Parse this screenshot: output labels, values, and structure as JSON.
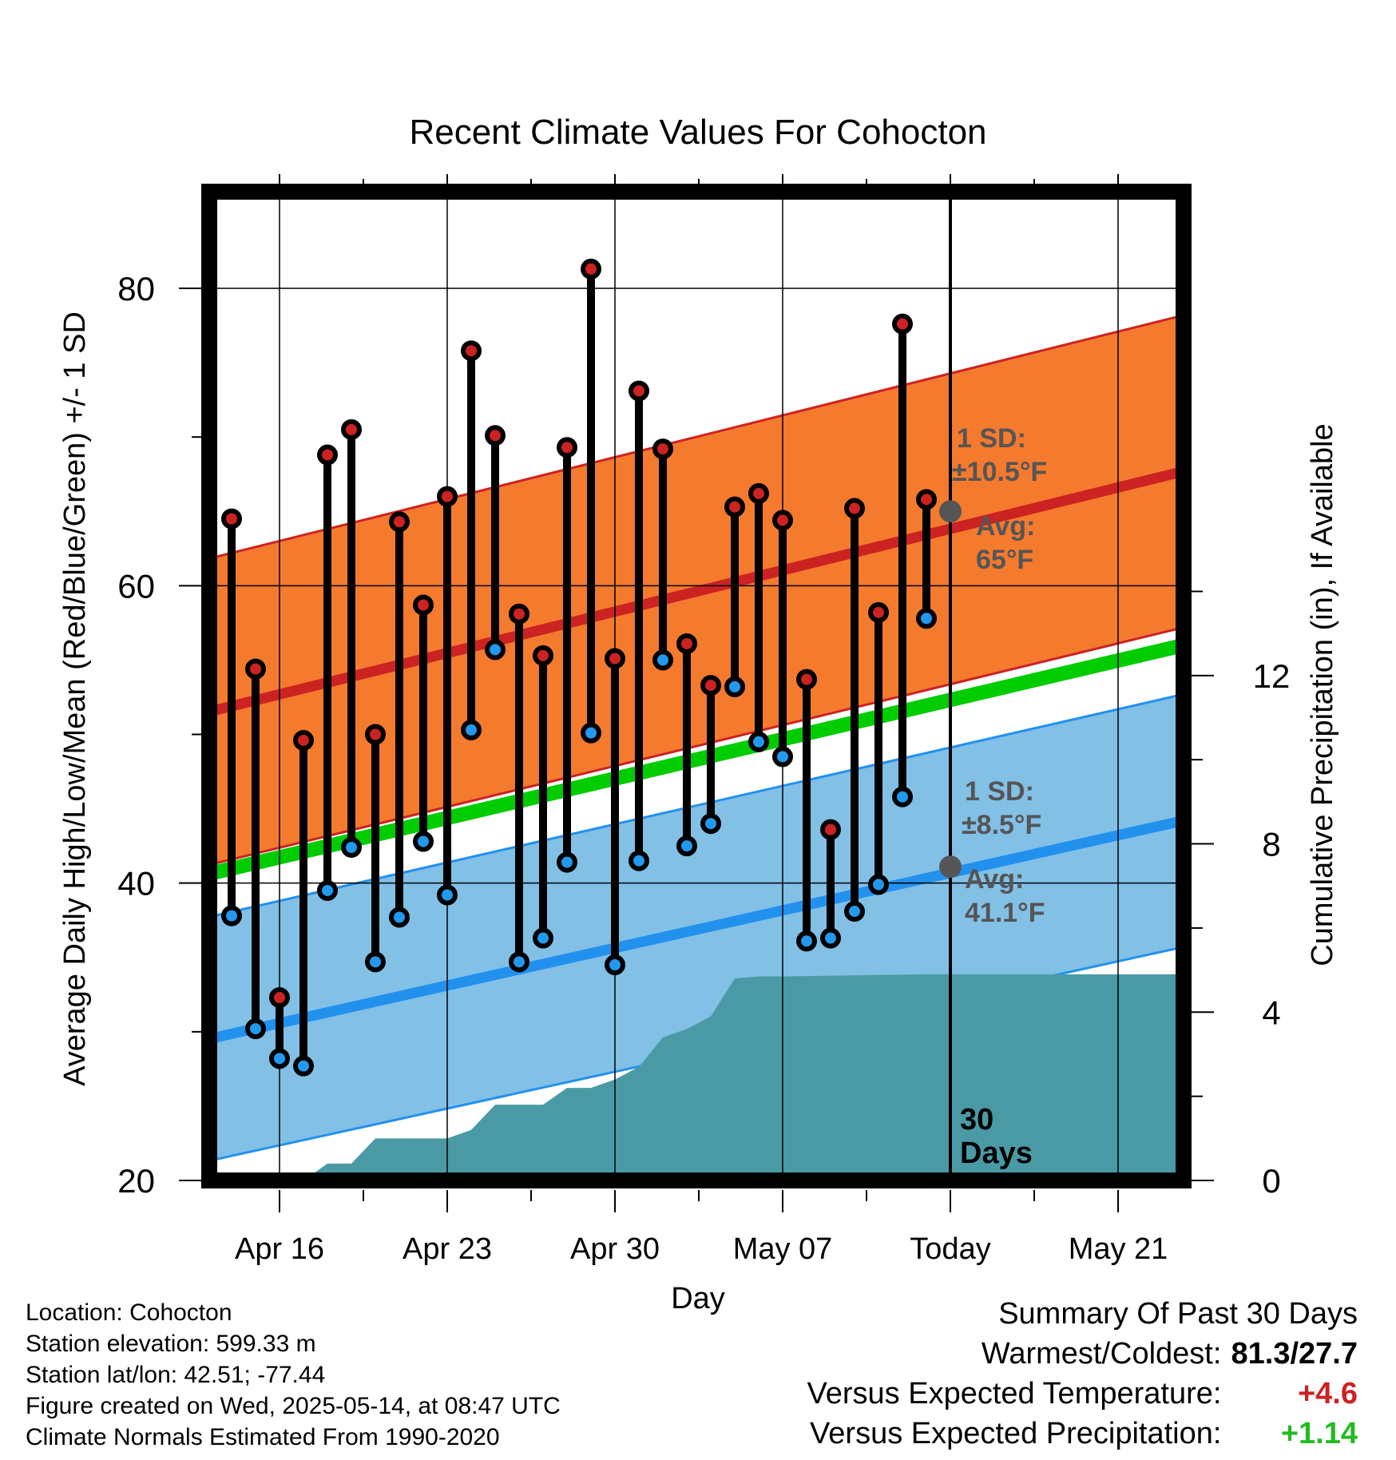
{
  "chart_data": {
    "type": "line",
    "title": "Recent Climate Values For Cohocton",
    "xlabel": "Day",
    "ylabel": "Average Daily High/Low/Mean (Red/Blue/Green) +/- 1 SD",
    "y2label": "Cumulative Precipitation (in), If Available",
    "ylim": [
      20,
      86.5
    ],
    "y2lim": [
      0,
      23.5
    ],
    "yticks": [
      "80",
      "60",
      "40",
      "20"
    ],
    "y2ticks": [
      "12",
      "8",
      "4",
      "0"
    ],
    "xticks": [
      "Apr 16",
      "Apr 23",
      "Apr 30",
      "May 07",
      "Today",
      "May 21"
    ],
    "x_dates": [
      "2025-04-14",
      "2025-04-15",
      "2025-04-16",
      "2025-04-17",
      "2025-04-18",
      "2025-04-19",
      "2025-04-20",
      "2025-04-21",
      "2025-04-22",
      "2025-04-23",
      "2025-04-24",
      "2025-04-25",
      "2025-04-26",
      "2025-04-27",
      "2025-04-28",
      "2025-04-29",
      "2025-04-30",
      "2025-05-01",
      "2025-05-02",
      "2025-05-03",
      "2025-05-04",
      "2025-05-05",
      "2025-05-06",
      "2025-05-07",
      "2025-05-08",
      "2025-05-09",
      "2025-05-10",
      "2025-05-11",
      "2025-05-12",
      "2025-05-13"
    ],
    "series": [
      {
        "name": "High",
        "color": "#cc2222",
        "values": [
          64.5,
          54.4,
          32.3,
          49.6,
          68.8,
          70.5,
          50.0,
          64.3,
          58.7,
          66.0,
          75.8,
          70.1,
          58.1,
          55.3,
          69.3,
          81.3,
          55.1,
          73.1,
          69.2,
          56.1,
          53.3,
          65.3,
          66.2,
          64.4,
          53.7,
          43.6,
          65.2,
          58.2,
          77.6,
          65.8
        ]
      },
      {
        "name": "Low",
        "color": "#2299ee",
        "values": [
          37.8,
          30.2,
          28.2,
          27.7,
          39.5,
          42.4,
          34.7,
          37.7,
          42.8,
          39.2,
          50.3,
          55.7,
          34.7,
          36.3,
          41.4,
          50.1,
          34.5,
          41.5,
          55.0,
          42.5,
          44.0,
          53.2,
          49.5,
          48.5,
          36.1,
          36.3,
          38.1,
          39.9,
          45.8,
          57.8
        ]
      }
    ],
    "normals": {
      "x_dates": [
        "2025-04-13",
        "2025-05-24"
      ],
      "high_avg": [
        51.5,
        67.8
      ],
      "high_sd": [
        10.3,
        10.5
      ],
      "low_avg": [
        29.5,
        44.3
      ],
      "low_sd": [
        8.2,
        8.5
      ],
      "mean_avg": [
        40.6,
        56.1
      ]
    },
    "precip_cumulative": {
      "x_dates": [
        "2025-04-17",
        "2025-04-18",
        "2025-04-19",
        "2025-04-20",
        "2025-04-21",
        "2025-04-22",
        "2025-04-23",
        "2025-04-24",
        "2025-04-25",
        "2025-04-26",
        "2025-04-27",
        "2025-04-28",
        "2025-04-29",
        "2025-04-30",
        "2025-05-01",
        "2025-05-02",
        "2025-05-03",
        "2025-05-04",
        "2025-05-05",
        "2025-05-06",
        "2025-05-07",
        "2025-05-13",
        "2025-05-24"
      ],
      "values": [
        0.0,
        0.4,
        0.4,
        1.0,
        1.0,
        1.0,
        1.0,
        1.2,
        1.8,
        1.8,
        1.8,
        2.2,
        2.2,
        2.4,
        2.7,
        3.4,
        3.6,
        3.9,
        4.8,
        4.85,
        4.85,
        4.9,
        4.9
      ]
    },
    "today_marker": {
      "date": "2025-05-14",
      "label": "30 Days",
      "high_sd_label": "1 SD:",
      "high_sd_value": "±10.5°F",
      "high_avg_label": "Avg:",
      "high_avg_value": "65°F",
      "high_avg": 65.0,
      "low_sd_label": "1 SD:",
      "low_sd_value": "±8.5°F",
      "low_avg_label": "Avg:",
      "low_avg_value": "41.1°F",
      "low_avg": 41.1
    },
    "grid": true,
    "colors": {
      "high_band": "#f47a2e",
      "high_line": "#cc2222",
      "low_band": "#82c0e6",
      "low_line": "#2291ee",
      "mean_line": "#00cc00",
      "precip_fill": "#4a9aa5"
    }
  },
  "info": {
    "location": "Location: Cohocton",
    "elevation": "Station elevation: 599.33 m",
    "latlon": "Station lat/lon: 42.51; -77.44",
    "created": "Figure created on Wed, 2025-05-14, at 08:47 UTC",
    "normals": "Climate Normals Estimated From 1990-2020"
  },
  "summary": {
    "title": "Summary Of Past 30 Days",
    "warm_cold_label": "Warmest/Coldest:",
    "warm_cold_value": "81.3/27.7",
    "temp_label": "Versus Expected Temperature:",
    "temp_value": "+4.6",
    "temp_color": "#cc2222",
    "precip_label": "Versus Expected Precipitation:",
    "precip_value": "+1.14",
    "precip_color": "#22bb22"
  }
}
